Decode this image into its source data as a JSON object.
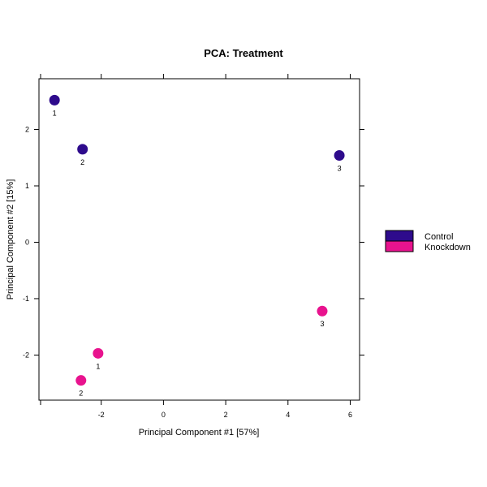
{
  "chart_data": {
    "type": "scatter",
    "title": "PCA: Treatment",
    "xlabel": "Principal Component #1 [57%]",
    "ylabel": "Principal Component #2 [15%]",
    "xlim": [
      -4.0,
      6.3
    ],
    "ylim": [
      -2.8,
      2.9
    ],
    "xticks": [
      -2,
      0,
      2,
      4,
      6
    ],
    "yticks": [
      -2,
      -1,
      0,
      1,
      2
    ],
    "grid": false,
    "legend_position": "right",
    "series": [
      {
        "name": "Control",
        "color": "#2E0B8C",
        "points": [
          {
            "x": -3.5,
            "y": 2.52,
            "label": "1"
          },
          {
            "x": -2.6,
            "y": 1.65,
            "label": "2"
          },
          {
            "x": 5.65,
            "y": 1.54,
            "label": "3"
          }
        ]
      },
      {
        "name": "Knockdown",
        "color": "#E8138E",
        "points": [
          {
            "x": -2.1,
            "y": -1.97,
            "label": "1"
          },
          {
            "x": -2.65,
            "y": -2.45,
            "label": "2"
          },
          {
            "x": 5.1,
            "y": -1.22,
            "label": "3"
          }
        ]
      }
    ]
  }
}
